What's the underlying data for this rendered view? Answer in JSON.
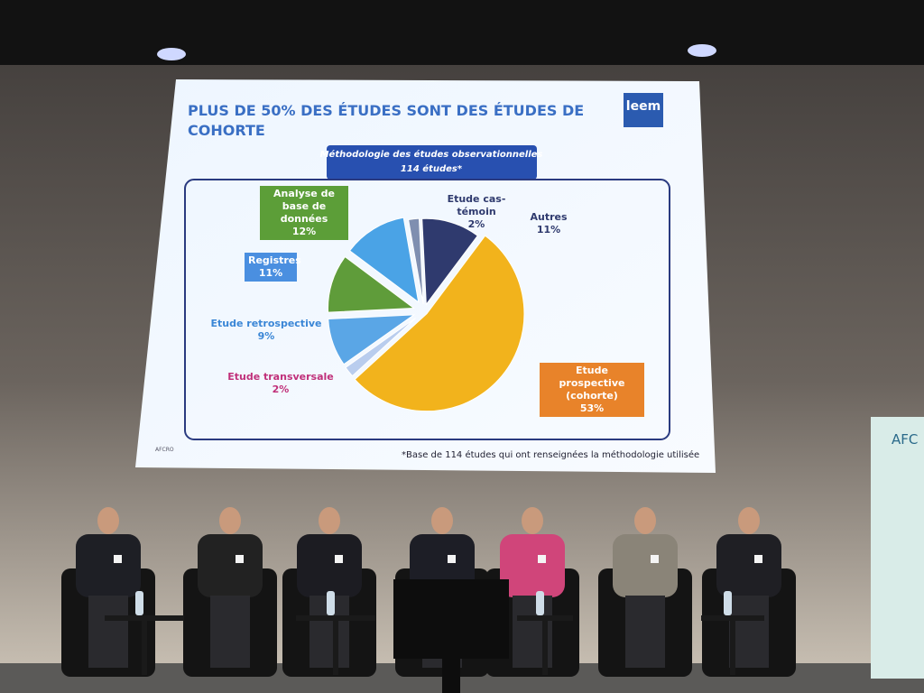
{
  "chart_data": {
    "type": "pie",
    "title": "PLUS DE 50% DES ÉTUDES SONT DES ÉTUDES DE COHORTE",
    "subtitle": "Méthodologie des études observationnelles",
    "total_label": "114 études*",
    "categories": [
      "Etude cas-témoin",
      "Autres",
      "Etude prospective (cohorte)",
      "Etude transversale",
      "Etude retrospective",
      "Registres",
      "Analyse de base de données"
    ],
    "values": [
      2,
      11,
      53,
      2,
      9,
      11,
      12
    ],
    "value_labels": [
      "2%",
      "11%",
      "53%",
      "2%",
      "9%",
      "11%",
      "12%"
    ],
    "colors": [
      "#7f8fb0",
      "#2f3a6e",
      "#f2b31c",
      "#b9cdee",
      "#5aa6e6",
      "#5f9c3a",
      "#4aa3e6"
    ],
    "footnote": "*Base de 114 études qui ont renseignées la méthodologie utilisée",
    "source": "AFCRO",
    "logo": "leem"
  },
  "banner": "AFC"
}
